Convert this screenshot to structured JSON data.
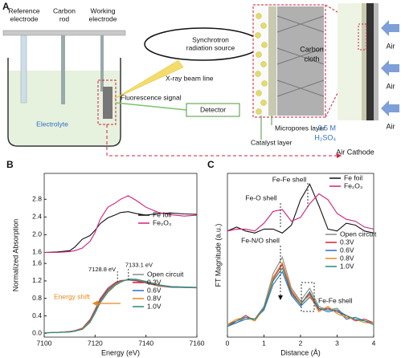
{
  "diagram": {
    "label": "A",
    "reference_electrode": [
      "Reference",
      "electrode"
    ],
    "carbon_rod": [
      "Carbon",
      "rod"
    ],
    "working_electrode": [
      "Working",
      "electrode"
    ],
    "electrolyte": "Electrolyte",
    "synchrotron": [
      "Synchrotron",
      "radiation source"
    ],
    "beam_line": "X-ray beam line",
    "fluorescence": "Fluorescence signal",
    "detector": "Detector",
    "carbon_cloth": [
      "Carbon",
      "cloth"
    ],
    "micropores": "Micropores layer",
    "catalyst": "Catalyst layer",
    "electrolyte_conc": [
      "0.5 M",
      "H₂SO₄"
    ],
    "air_cathode": "Air Cathode",
    "air": [
      "Air",
      "Air",
      "Air"
    ]
  },
  "chart_data": [
    {
      "type": "line",
      "label": "B",
      "xlabel": "Energy (eV)",
      "ylabel": "Normalized Absorption",
      "x": [
        7100,
        7105,
        7110,
        7112,
        7115,
        7118,
        7120,
        7122,
        7125,
        7128,
        7130,
        7133,
        7136,
        7140,
        7145,
        7150,
        7155,
        7160
      ],
      "xlim": [
        7100,
        7160
      ],
      "xticks": [
        7100,
        7120,
        7140,
        7160
      ],
      "subplots": [
        {
          "ylim": [
            1.5,
            2.95
          ],
          "yticks": [
            1.6,
            {
              "value": 2.0,
              "label": "2.0"
            },
            2.4,
            2.8
          ],
          "series": [
            {
              "name": "Fe foil",
              "color": "#111111",
              "values": [
                1.6,
                1.61,
                1.64,
                1.72,
                1.9,
                1.98,
                2.1,
                2.25,
                2.38,
                2.45,
                2.5,
                2.52,
                2.48,
                2.44,
                2.48,
                2.49,
                2.47,
                2.46
              ]
            },
            {
              "name": "Fe₂O₃",
              "color": "#d0207a",
              "values": [
                1.6,
                1.6,
                1.62,
                1.64,
                1.7,
                1.85,
                2.05,
                2.35,
                2.62,
                2.72,
                2.8,
                2.88,
                2.78,
                2.62,
                2.5,
                2.45,
                2.42,
                2.44
              ]
            }
          ]
        },
        {
          "ylim": [
            -0.05,
            1.75
          ],
          "yticks": [
            {
              "value": 0,
              "label": "0.0"
            },
            0.4,
            0.8,
            1.2,
            1.6
          ],
          "series": [
            {
              "name": "Open circuit",
              "color": "#8a8a8a",
              "values": [
                0.01,
                0.02,
                0.04,
                0.06,
                0.12,
                0.32,
                0.55,
                0.8,
                1.04,
                1.17,
                1.21,
                1.22,
                1.2,
                1.15,
                1.08,
                1.05,
                1.05,
                1.04
              ]
            },
            {
              "name": "0.3V",
              "color": "#d21f3c",
              "values": [
                0.01,
                0.02,
                0.04,
                0.06,
                0.11,
                0.3,
                0.52,
                0.77,
                1.01,
                1.15,
                1.2,
                1.23,
                1.21,
                1.16,
                1.09,
                1.06,
                1.05,
                1.05
              ]
            },
            {
              "name": "0.6V",
              "color": "#2f6fc4",
              "values": [
                0.01,
                0.02,
                0.03,
                0.05,
                0.1,
                0.28,
                0.5,
                0.74,
                0.98,
                1.13,
                1.19,
                1.23,
                1.22,
                1.17,
                1.1,
                1.06,
                1.05,
                1.05
              ]
            },
            {
              "name": "0.8V",
              "color": "#e8891c",
              "values": [
                0.01,
                0.02,
                0.03,
                0.05,
                0.1,
                0.27,
                0.48,
                0.72,
                0.96,
                1.12,
                1.18,
                1.24,
                1.23,
                1.18,
                1.1,
                1.07,
                1.06,
                1.05
              ]
            },
            {
              "name": "1.0V",
              "color": "#238b7a",
              "values": [
                0.01,
                0.02,
                0.03,
                0.05,
                0.09,
                0.25,
                0.46,
                0.7,
                0.94,
                1.1,
                1.17,
                1.24,
                1.24,
                1.19,
                1.11,
                1.07,
                1.06,
                1.05
              ]
            }
          ]
        }
      ],
      "annotations": [
        {
          "text": "7128.8 eV",
          "x": 7128.8
        },
        {
          "text": "7133.1 eV",
          "x": 7133.1
        },
        {
          "text": "Energy shift"
        }
      ]
    },
    {
      "type": "line",
      "label": "C",
      "xlabel": "Distance (Å)",
      "ylabel": "FT Magnitude (a.u.)",
      "x": [
        0,
        0.25,
        0.5,
        0.75,
        1,
        1.25,
        1.5,
        1.75,
        2,
        2.25,
        2.5,
        2.75,
        3,
        3.25,
        3.5,
        3.75,
        4
      ],
      "xlim": [
        0,
        4
      ],
      "xticks": [
        0,
        1,
        2,
        3,
        4
      ],
      "subplots": [
        {
          "ylim": [
            6.4,
            9.6
          ],
          "series": [
            {
              "name": "Fe foil",
              "color": "#111111",
              "values": [
                6.9,
                7.1,
                6.9,
                6.8,
                7.0,
                7.0,
                6.8,
                7.2,
                8.5,
                9.3,
                8.2,
                7.0,
                6.9,
                7.3,
                7.2,
                6.9,
                6.8
              ]
            },
            {
              "name": "Fe₂O₃",
              "color": "#d0207a",
              "values": [
                6.9,
                7.0,
                7.0,
                6.9,
                7.3,
                7.9,
                8.0,
                7.4,
                7.6,
                8.3,
                8.8,
                8.5,
                7.8,
                7.5,
                7.4,
                7.1,
                7.0
              ]
            }
          ]
        },
        {
          "ylim": [
            0,
            5.2
          ],
          "series": [
            {
              "name": "Open circuit",
              "color": "#8a8a8a",
              "values": [
                0.6,
                0.7,
                1.0,
                0.9,
                1.6,
                3.4,
                4.3,
                2.6,
                1.9,
                2.6,
                1.6,
                1.4,
                1.5,
                1.0,
                0.9,
                0.8,
                0.7
              ]
            },
            {
              "name": "0.3V",
              "color": "#d21f3c",
              "values": [
                0.6,
                0.8,
                1.1,
                0.8,
                1.5,
                3.1,
                3.9,
                2.4,
                1.7,
                2.3,
                1.4,
                1.5,
                1.3,
                1.1,
                0.8,
                0.9,
                0.7
              ]
            },
            {
              "name": "0.6V",
              "color": "#2f6fc4",
              "values": [
                0.5,
                0.7,
                0.9,
                0.9,
                1.4,
                2.8,
                3.5,
                2.2,
                1.6,
                2.1,
                1.5,
                1.3,
                1.4,
                0.9,
                1.0,
                0.8,
                0.6
              ]
            },
            {
              "name": "0.8V",
              "color": "#e8891c",
              "values": [
                0.6,
                0.9,
                1.0,
                0.8,
                1.5,
                3.2,
                4.0,
                2.5,
                1.8,
                2.2,
                1.3,
                1.6,
                1.2,
                1.0,
                0.9,
                0.7,
                0.7
              ]
            },
            {
              "name": "1.0V",
              "color": "#238b7a",
              "values": [
                0.5,
                0.8,
                1.0,
                0.9,
                1.5,
                3.0,
                3.7,
                2.3,
                1.7,
                2.4,
                1.5,
                1.4,
                1.4,
                1.1,
                0.9,
                0.8,
                0.6
              ]
            }
          ]
        }
      ],
      "annotations": [
        {
          "text": "Fe-Fe shell"
        },
        {
          "text": "Fe-O shell"
        },
        {
          "text": "Fe-N/O shell"
        },
        {
          "text": "Fe-Fe shell"
        }
      ]
    }
  ]
}
